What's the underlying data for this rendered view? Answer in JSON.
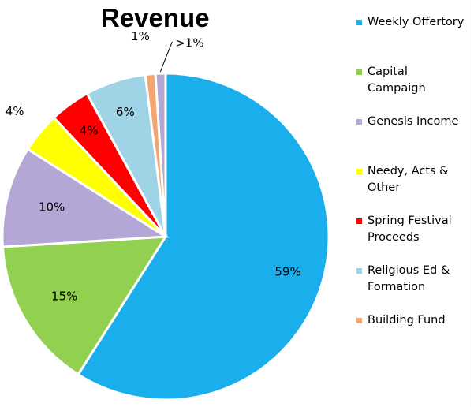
{
  "chart_data": {
    "type": "pie",
    "title": "Revenue",
    "start_angle_deg": 0,
    "direction": "clockwise",
    "slices": [
      {
        "label": "Weekly Offertory",
        "value": 59,
        "display": "59%",
        "color": "#1aaeed"
      },
      {
        "label": "Capital Campaign",
        "value": 15,
        "display": "15%",
        "color": "#92d050"
      },
      {
        "label": "Genesis Income",
        "value": 10,
        "display": "10%",
        "color": "#b4a7d6"
      },
      {
        "label": "Needy, Acts & Other",
        "value": 4,
        "display": "4%",
        "color": "#ffff00"
      },
      {
        "label": "Spring Festival Proceeds",
        "value": 4,
        "display": "4%",
        "color": "#ff0000"
      },
      {
        "label": "Religious Ed & Formation",
        "value": 6,
        "display": "6%",
        "color": "#9fd3e6"
      },
      {
        "label": "Building Fund",
        "value": 1,
        "display": "1%",
        "color": "#f4a56f"
      },
      {
        "label": "",
        "value": 1,
        "display": ">1%",
        "color": "#b4a7d6"
      }
    ],
    "legend": {
      "position": "right",
      "items": [
        {
          "label": "Weekly Offertory",
          "color": "#1aaeed"
        },
        {
          "label": "Capital Campaign",
          "color": "#92d050"
        },
        {
          "label": "Genesis Income",
          "color": "#b4a7d6"
        },
        {
          "label": "Needy, Acts & Other",
          "color": "#ffff00"
        },
        {
          "label": "Spring Festival Proceeds",
          "color": "#ff0000"
        },
        {
          "label": "Religious Ed & Formation",
          "color": "#9fd3e6"
        },
        {
          "label": "Building Fund",
          "color": "#f4a56f"
        }
      ]
    }
  }
}
